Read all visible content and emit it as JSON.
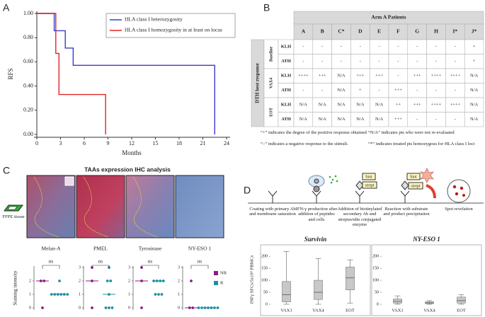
{
  "panels": [
    "A",
    "B",
    "C",
    "D"
  ],
  "chart_data": [
    {
      "type": "step",
      "ylabel": "RFS",
      "xlabel": "Months",
      "xlim": [
        0,
        24
      ],
      "ylim": [
        0,
        1
      ],
      "xticks": [
        0,
        3,
        6,
        9,
        12,
        15,
        18,
        21,
        24
      ],
      "yticks": [
        {
          "value": 0,
          "label": "0.00"
        },
        {
          "value": 0.2,
          "label": "0.20"
        },
        {
          "value": 0.4,
          "label": "0.40"
        },
        {
          "value": 0.6,
          "label": "0.60"
        },
        {
          "value": 0.8,
          "label": "0.80"
        },
        {
          "value": 1,
          "label": "1.00"
        }
      ],
      "series": [
        {
          "name": "HLA class I heterozygosity",
          "color": "#3a3ad0",
          "x": [
            0,
            2.2,
            3.6,
            4.6,
            22.5
          ],
          "values": [
            1,
            0.857,
            0.714,
            0.571,
            0
          ]
        },
        {
          "name": "HLA class I homozygosity in at least on locus",
          "color": "#e02424",
          "x": [
            0,
            2.4,
            2.8,
            8.7
          ],
          "values": [
            1,
            0.67,
            0.33,
            0
          ]
        }
      ]
    },
    {
      "type": "strip",
      "ylabel": "Staining intensity",
      "annotation": "ns",
      "ylim": [
        0,
        3
      ],
      "yticks": [
        0,
        1,
        2
      ],
      "groups": [
        [
          2,
          2,
          0
        ],
        [
          2,
          1,
          1,
          1,
          1,
          1,
          1
        ]
      ],
      "medians": [
        2,
        1
      ]
    },
    {
      "type": "strip",
      "annotation": "ns",
      "ylim": [
        0,
        3
      ],
      "yticks": [
        0,
        1,
        2,
        3
      ],
      "groups": [
        [
          3,
          2,
          0
        ],
        [
          3,
          2,
          2,
          1,
          0,
          0,
          0
        ]
      ],
      "medians": [
        2,
        1
      ]
    },
    {
      "type": "strip",
      "annotation": "ns",
      "ylim": [
        0,
        3
      ],
      "yticks": [
        0,
        1,
        2,
        3
      ],
      "groups": [
        [
          3,
          2,
          0
        ],
        [
          2,
          2,
          2,
          2,
          1,
          1,
          1
        ]
      ],
      "medians": [
        2,
        2
      ]
    },
    {
      "type": "strip",
      "annotation": "ns",
      "ylim": [
        0,
        3
      ],
      "yticks": [
        0,
        1,
        2,
        3
      ],
      "groups": [
        [
          2,
          0,
          0
        ],
        [
          0,
          0,
          0,
          0,
          0,
          0,
          0
        ]
      ],
      "medians": [
        0,
        0
      ]
    },
    {
      "type": "box",
      "title": "Survivin",
      "ylabel": "INFγ SFCs/5x10⁵ PBMCs",
      "categories": [
        "VAX1",
        "VAX4",
        "EOT"
      ],
      "ylim": [
        0,
        230
      ],
      "yticks": [
        0,
        50,
        100,
        150,
        200
      ],
      "boxes": [
        {
          "min": 0,
          "q1": 10,
          "median": 40,
          "q3": 95,
          "max": 220
        },
        {
          "min": 0,
          "q1": 20,
          "median": 50,
          "q3": 100,
          "max": 190
        },
        {
          "min": 5,
          "q1": 60,
          "median": 110,
          "q3": 155,
          "max": 185
        }
      ]
    },
    {
      "type": "box",
      "title": "NY-ESO 1",
      "categories": [
        "VAX1",
        "VAX4",
        "EOT"
      ],
      "ylim": [
        0,
        230
      ],
      "yticks": [
        0,
        50,
        100,
        150,
        200
      ],
      "boxes": [
        {
          "min": 0,
          "q1": 5,
          "median": 12,
          "q3": 22,
          "max": 35
        },
        {
          "min": 0,
          "q1": 3,
          "median": 6,
          "q3": 10,
          "max": 15
        },
        {
          "min": 0,
          "q1": 5,
          "median": 15,
          "q3": 30,
          "max": 40
        }
      ]
    }
  ],
  "dot_legend": [
    {
      "name": "NR",
      "color": "#8b1c8b"
    },
    {
      "name": "R",
      "color": "#1f8fa0"
    }
  ],
  "table": {
    "header": "Arm A Patients",
    "columns": [
      "A",
      "B",
      "C*",
      "D",
      "E",
      "F",
      "G",
      "H",
      "I*",
      "J*"
    ],
    "row_header": "DTH best response",
    "groups": [
      {
        "name": "Baseline",
        "rows": [
          {
            "label": "KLH",
            "cells": [
              "-",
              "-",
              "-",
              "-",
              "-",
              "-",
              "-",
              "-",
              "-",
              "+"
            ]
          },
          {
            "label": "ATH",
            "cells": [
              "-",
              "-",
              "-",
              "-",
              "-",
              "-",
              "-",
              "-",
              "-",
              "+"
            ]
          }
        ]
      },
      {
        "name": "VAX4",
        "rows": [
          {
            "label": "KLH",
            "cells": [
              "++++",
              "+++",
              "N/A",
              "+++",
              "+++",
              "-",
              "+++",
              "++++",
              "++++",
              "N/A"
            ]
          },
          {
            "label": "ATH",
            "cells": [
              "-",
              "-",
              "N/A",
              "+",
              "-",
              "+++",
              "-",
              "-",
              "-",
              "N/A"
            ]
          }
        ]
      },
      {
        "name": "EOT",
        "rows": [
          {
            "label": "KLH",
            "cells": [
              "N/A",
              "N/A",
              "N/A",
              "N/A",
              "N/A",
              "++",
              "+++",
              "++++",
              "++++",
              "N/A"
            ]
          },
          {
            "label": "ATH",
            "cells": [
              "N/A",
              "N/A",
              "N/A",
              "N/A",
              "N/A",
              "+++",
              "-",
              "-",
              "-",
              "N/A"
            ]
          }
        ]
      }
    ],
    "footnotes": [
      "“+” indicates the degree of the positive response obtained",
      "“N/A” indicates pts who were not re-evaluated",
      "“–” indicates a negative response to the stimuli.",
      "“*” indicates treated pts homozygous for HLA class I loci"
    ]
  },
  "ihc": {
    "title": "TAAs expression IHC analysis",
    "tissue": "FFPE tissue",
    "images": [
      "Melan-A",
      "PMEL",
      "Tyrosinase",
      "NY-ESO 1"
    ]
  },
  "diagram": {
    "steps": [
      "Coating with primary Ab and membrane saturation",
      "IFN-γ production after addition of peptides and cells",
      "Addition of biotinylated secondary Ab and streptavidin conjugated enzyme",
      "Reaction with substrate and product precipitation",
      "Spot revelation"
    ],
    "tags": [
      "biot",
      "strept"
    ]
  }
}
